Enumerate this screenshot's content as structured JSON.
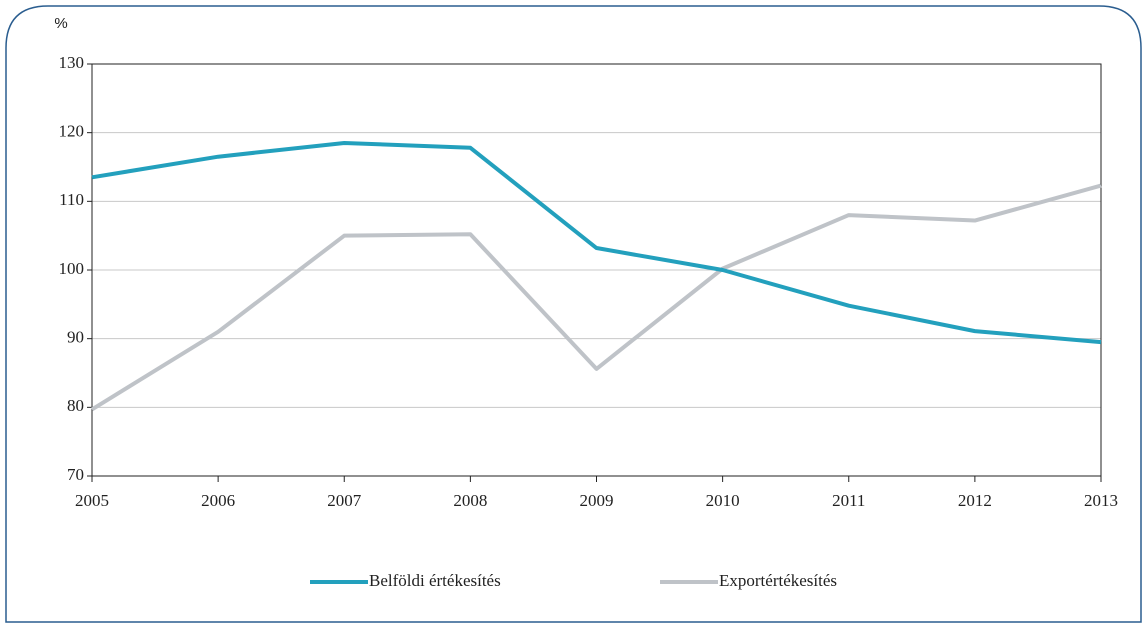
{
  "chart_data": {
    "type": "line",
    "y_label": "%",
    "x": [
      2005,
      2006,
      2007,
      2008,
      2009,
      2010,
      2011,
      2012,
      2013
    ],
    "xlim": [
      2005,
      2013
    ],
    "xticks": [
      2005,
      2006,
      2007,
      2008,
      2009,
      2010,
      2011,
      2012,
      2013
    ],
    "ylim": [
      70,
      130
    ],
    "yticks": [
      70,
      80,
      90,
      100,
      110,
      120,
      130
    ],
    "grid": true,
    "legend": "bottom",
    "series": [
      {
        "name": "Belföldi értékesítés",
        "color": "#23a0bd",
        "values": [
          113.5,
          116.5,
          118.5,
          117.8,
          103.2,
          100,
          94.8,
          91.1,
          89.5
        ]
      },
      {
        "name": "Exportértékesítés",
        "color": "#bfc3c8",
        "values": [
          79.7,
          91,
          105,
          105.2,
          85.6,
          100.2,
          108,
          107.2,
          112.3
        ]
      }
    ]
  }
}
